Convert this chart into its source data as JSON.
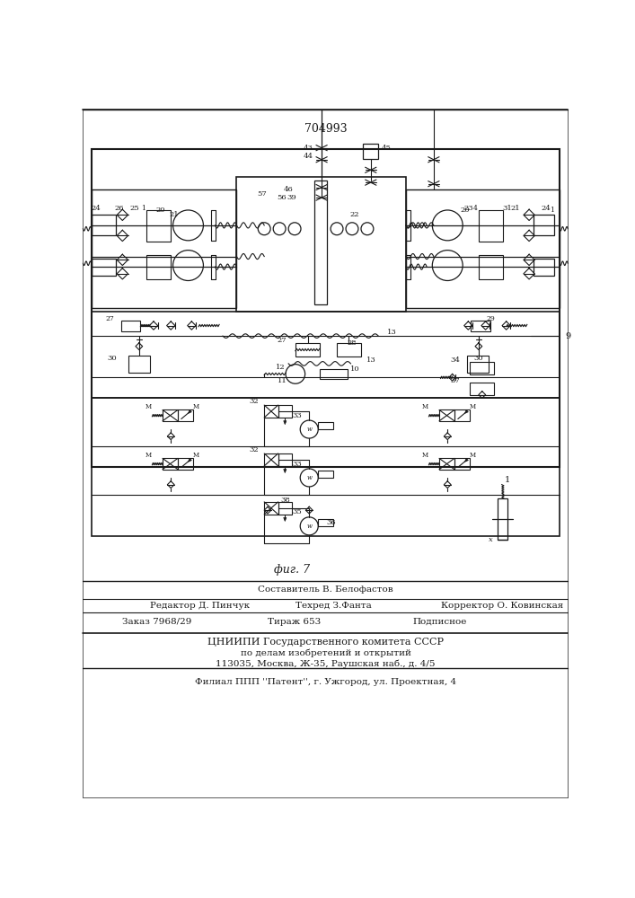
{
  "patent_number": "704993",
  "fig_label": "фиг. 7",
  "footer_line1": "Составитель В. Белофастов",
  "footer_line2a": "Редактор Д. Пинчук",
  "footer_line2b": "Техред З.Фанта",
  "footer_line2c": "Корректор О. Ковинская",
  "footer_line3a": "Заказ 7968/29",
  "footer_line3b": "Тираж 653",
  "footer_line3c": "Подписное",
  "footer_line4": "ЦНИИПИ Государственного комитета СССР",
  "footer_line5": "по делам изобретений и открытий",
  "footer_line6": "113035, Москва, Ж-35, Раушская наб., д. 4/5",
  "footer_line7": "Филиал ППП ''Патент'', г. Ужгород, ул. Проектная, 4",
  "bg_color": "#ffffff",
  "lc": "#1a1a1a"
}
